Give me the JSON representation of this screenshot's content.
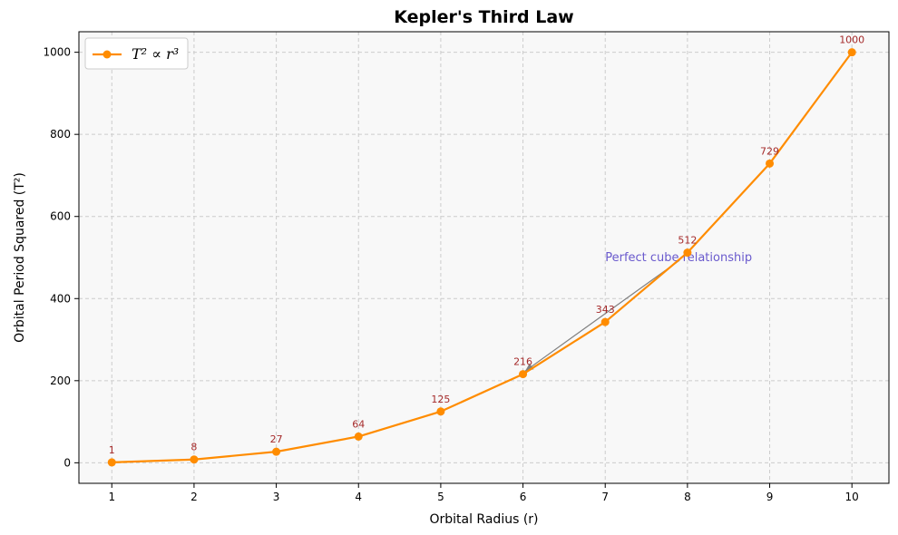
{
  "chart_data": {
    "type": "line",
    "title": "Kepler's Third Law",
    "xlabel": "Orbital Radius (r)",
    "ylabel": "Orbital Period Squared (T²)",
    "xlim": [
      0.6,
      10.45
    ],
    "ylim": [
      -50,
      1050
    ],
    "xticks": [
      1,
      2,
      3,
      4,
      5,
      6,
      7,
      8,
      9,
      10
    ],
    "yticks": [
      0,
      200,
      400,
      600,
      800,
      1000
    ],
    "grid": true,
    "legend_position": "upper-left",
    "series": [
      {
        "name": "T² ∝ r³",
        "color": "#ff8c00",
        "x": [
          1,
          2,
          3,
          4,
          5,
          6,
          7,
          8,
          9,
          10
        ],
        "y": [
          1,
          8,
          27,
          64,
          125,
          216,
          343,
          512,
          729,
          1000
        ]
      }
    ],
    "data_labels": [
      "1",
      "8",
      "27",
      "64",
      "125",
      "216",
      "343",
      "512",
      "729",
      "1000"
    ],
    "data_label_color": "#a52a2a",
    "annotation": {
      "text": "Perfect cube relationship",
      "text_x": 7,
      "text_y": 500,
      "point_x": 6,
      "point_y": 216,
      "color": "#6a5acd",
      "arrow_color": "#808080"
    }
  }
}
